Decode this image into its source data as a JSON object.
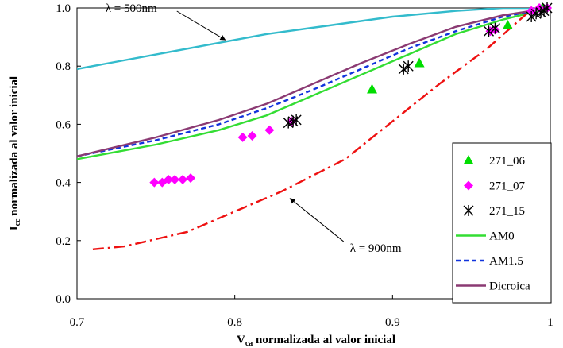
{
  "chart_data": {
    "type": "scatter",
    "title": "",
    "xlabel_main": "V",
    "xlabel_sub": "ca",
    "xlabel_rest": " normalizada al valor inicial",
    "ylabel_main": "I",
    "ylabel_sub": "cc",
    "ylabel_rest": " normalizada al valor inicial",
    "xlim": [
      0.7,
      1.0
    ],
    "ylim": [
      0.0,
      1.0
    ],
    "xticks": [
      "0.7",
      "0.8",
      "0.9",
      "1"
    ],
    "yticks": [
      "0.0",
      "0.2",
      "0.4",
      "0.6",
      "0.8",
      "1.0"
    ],
    "grid": false,
    "legend_position": "bottom-right",
    "series": [
      {
        "name": "271_06",
        "kind": "scatter",
        "marker": "triangle",
        "color": "#00dd00",
        "x": [
          0.887,
          0.917,
          0.973,
          0.995
        ],
        "y": [
          0.72,
          0.81,
          0.94,
          1.0
        ]
      },
      {
        "name": "271_07",
        "kind": "scatter",
        "marker": "diamond",
        "color": "#ff00ff",
        "x": [
          0.749,
          0.754,
          0.758,
          0.762,
          0.767,
          0.772,
          0.805,
          0.811,
          0.822,
          0.836,
          0.962,
          0.965,
          0.988,
          0.993,
          0.998
        ],
        "y": [
          0.4,
          0.4,
          0.41,
          0.41,
          0.41,
          0.415,
          0.555,
          0.56,
          0.58,
          0.61,
          0.92,
          0.925,
          0.99,
          1.0,
          1.0
        ]
      },
      {
        "name": "271_15",
        "kind": "scatter",
        "marker": "asterisk",
        "color": "#000000",
        "x": [
          0.834,
          0.837,
          0.839,
          0.907,
          0.91,
          0.961,
          0.965,
          0.988,
          0.991,
          0.994,
          0.996,
          0.998
        ],
        "y": [
          0.605,
          0.61,
          0.615,
          0.79,
          0.8,
          0.92,
          0.93,
          0.97,
          0.98,
          0.985,
          0.99,
          1.0
        ]
      },
      {
        "name": "AM0",
        "kind": "line",
        "dash": "solid",
        "color": "#33dd33",
        "x": [
          0.7,
          0.75,
          0.79,
          0.82,
          0.85,
          0.88,
          0.91,
          0.94,
          0.97,
          1.0
        ],
        "y": [
          0.48,
          0.53,
          0.58,
          0.63,
          0.7,
          0.77,
          0.84,
          0.91,
          0.96,
          1.0
        ]
      },
      {
        "name": "AM1.5",
        "kind": "line",
        "dash": "dashed",
        "color": "#1133dd",
        "x": [
          0.7,
          0.75,
          0.79,
          0.82,
          0.85,
          0.88,
          0.91,
          0.94,
          0.97,
          1.0
        ],
        "y": [
          0.49,
          0.545,
          0.6,
          0.655,
          0.72,
          0.79,
          0.86,
          0.92,
          0.97,
          1.0
        ]
      },
      {
        "name": "Dicroica",
        "kind": "line",
        "dash": "solid",
        "color": "#8b3a73",
        "x": [
          0.7,
          0.75,
          0.79,
          0.82,
          0.85,
          0.88,
          0.91,
          0.94,
          0.97,
          1.0
        ],
        "y": [
          0.49,
          0.555,
          0.615,
          0.67,
          0.74,
          0.81,
          0.875,
          0.935,
          0.975,
          1.0
        ]
      },
      {
        "name": "",
        "kind": "line",
        "dash": "solid",
        "color": "#33bbcc",
        "x": [
          0.7,
          0.72,
          0.75,
          0.78,
          0.82,
          0.86,
          0.9,
          0.94,
          0.97,
          1.0
        ],
        "y": [
          0.79,
          0.81,
          0.84,
          0.87,
          0.91,
          0.94,
          0.97,
          0.99,
          1.0,
          1.0
        ]
      },
      {
        "name": "",
        "kind": "line",
        "dash": "dashdot",
        "color": "#ee1111",
        "x": [
          0.71,
          0.73,
          0.77,
          0.8,
          0.83,
          0.87,
          0.9,
          0.93,
          0.96,
          0.985
        ],
        "y": [
          0.17,
          0.18,
          0.23,
          0.3,
          0.37,
          0.48,
          0.61,
          0.74,
          0.86,
          0.98
        ]
      }
    ],
    "annotations": [
      {
        "text": "λ = 500nm",
        "x": 0.718,
        "y": 1.0,
        "arrow_to_x": 0.794,
        "arrow_to_y": 0.89
      },
      {
        "text": "λ = 900nm",
        "x": 0.873,
        "y": 0.175,
        "arrow_to_x": 0.835,
        "arrow_to_y": 0.345
      }
    ]
  }
}
